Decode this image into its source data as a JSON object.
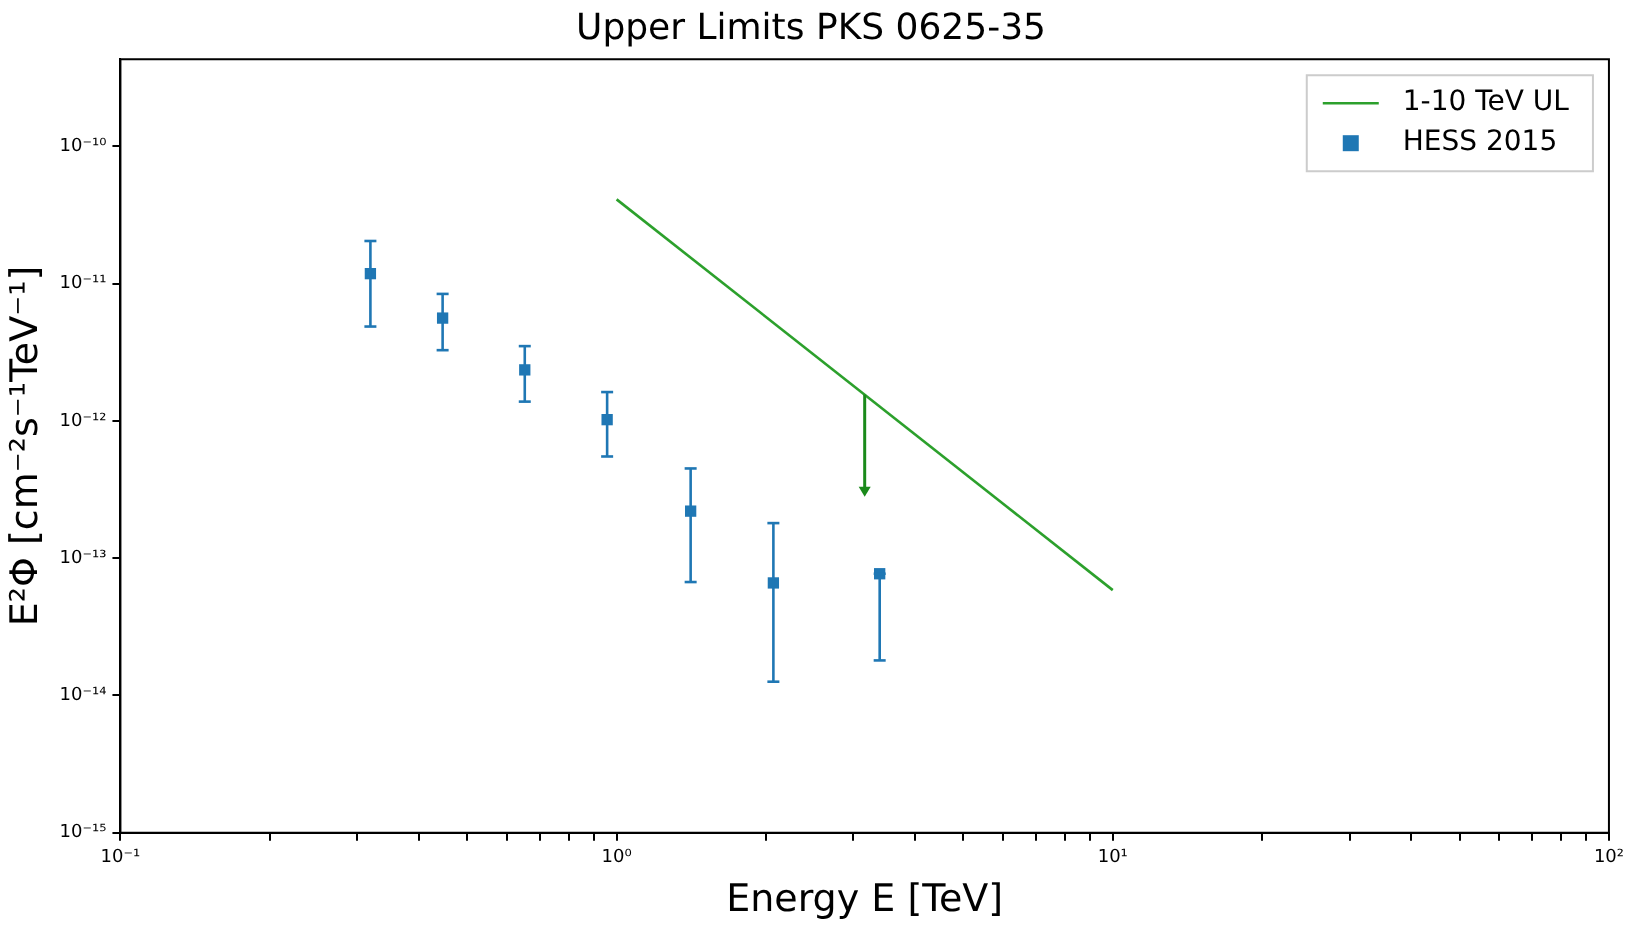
{
  "chart_data": {
    "type": "scatter",
    "title": "Upper Limits PKS 0625-35",
    "xlabel": "Energy E [TeV]",
    "ylabel": "E²Φ [cm⁻²s⁻¹TeV⁻¹]",
    "log": "xy",
    "xlim": [
      0.1,
      100
    ],
    "ylim": [
      1e-15,
      4.3e-10
    ],
    "xticks": [
      {
        "value": 0.1,
        "label": "10⁻¹"
      },
      {
        "value": 0.2,
        "label": null
      },
      {
        "value": 0.3,
        "label": null
      },
      {
        "value": 0.4,
        "label": null
      },
      {
        "value": 0.5,
        "label": null
      },
      {
        "value": 0.6,
        "label": null
      },
      {
        "value": 0.7,
        "label": null
      },
      {
        "value": 0.8,
        "label": null
      },
      {
        "value": 0.9,
        "label": null
      },
      {
        "value": 1,
        "label": "10⁰"
      },
      {
        "value": 2,
        "label": null
      },
      {
        "value": 3,
        "label": null
      },
      {
        "value": 4,
        "label": null
      },
      {
        "value": 5,
        "label": null
      },
      {
        "value": 6,
        "label": null
      },
      {
        "value": 7,
        "label": null
      },
      {
        "value": 8,
        "label": null
      },
      {
        "value": 9,
        "label": null
      },
      {
        "value": 10,
        "label": "10¹"
      },
      {
        "value": 20,
        "label": null
      },
      {
        "value": 30,
        "label": null
      },
      {
        "value": 40,
        "label": null
      },
      {
        "value": 50,
        "label": null
      },
      {
        "value": 60,
        "label": null
      },
      {
        "value": 70,
        "label": null
      },
      {
        "value": 80,
        "label": null
      },
      {
        "value": 90,
        "label": null
      },
      {
        "value": 100,
        "label": "10²"
      }
    ],
    "yticks": [
      {
        "value": 1e-15,
        "label": "10⁻¹⁵"
      },
      {
        "value": 1e-14,
        "label": "10⁻¹⁴"
      },
      {
        "value": 1e-13,
        "label": "10⁻¹³"
      },
      {
        "value": 1e-12,
        "label": "10⁻¹²"
      },
      {
        "value": 1e-11,
        "label": "10⁻¹¹"
      },
      {
        "value": 1e-10,
        "label": "10⁻¹⁰"
      }
    ],
    "grid": false,
    "legend": "top right",
    "series": [
      {
        "name": "1-10 TeV UL",
        "type": "line",
        "color": "#2ca02c",
        "x": [
          1,
          10
        ],
        "values": [
          4.1e-11,
          5.85e-14
        ],
        "marker": "none",
        "line_style": "solid"
      },
      {
        "name": "HESS 2015",
        "type": "scatter",
        "color": "#1f77b4",
        "marker": "square",
        "x": [
          0.319,
          0.446,
          0.653,
          0.957,
          1.41,
          2.07,
          3.39
        ],
        "values": [
          1.18e-11,
          5.6e-12,
          2.35e-12,
          1.02e-12,
          2.2e-13,
          6.6e-14,
          7.7e-14
        ],
        "errors": [
          [
            4.86e-12,
            2.04e-11
          ],
          [
            3.27e-12,
            8.4e-12
          ],
          [
            1.38e-12,
            3.5e-12
          ],
          [
            5.5e-13,
            1.62e-12
          ],
          [
            6.7e-14,
            4.5e-13
          ],
          [
            1.26e-14,
            1.8e-13
          ],
          [
            1.8e-14,
            7.7e-14
          ]
        ]
      }
    ]
  }
}
